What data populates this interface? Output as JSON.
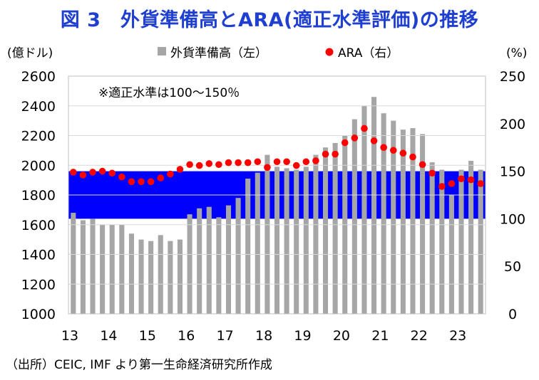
{
  "title": "図 3　外貨準備高とARA(適正水準評価)の推移",
  "source": "（出所）CEIC, IMF より第一生命経済研究所作成",
  "chart_data": {
    "type": "bar",
    "left_axis_unit": "(億ドル)",
    "right_axis_unit": "(%)",
    "ylim_left": [
      1000,
      2600
    ],
    "yticks_left": [
      1000,
      1200,
      1400,
      1600,
      1800,
      2000,
      2200,
      2400,
      2600
    ],
    "ylim_right": [
      0,
      250
    ],
    "yticks_right": [
      0,
      50,
      100,
      150,
      200,
      250
    ],
    "x_tick_labels": [
      "13",
      "14",
      "15",
      "16",
      "17",
      "18",
      "19",
      "20",
      "21",
      "22",
      "23"
    ],
    "legend": {
      "bar_label": "外貨準備高（左）",
      "dot_label": "ARA（右）"
    },
    "annotation": "※適正水準は100〜150％",
    "band_right": [
      100,
      150
    ],
    "colors": {
      "bars": "#a6a6a6",
      "dots": "#ff0000",
      "band": "#0000ff",
      "title": "#1f3fd1"
    },
    "x_start_year": 2013,
    "quarters": [
      "2013Q1",
      "2013Q2",
      "2013Q3",
      "2013Q4",
      "2014Q1",
      "2014Q2",
      "2014Q3",
      "2014Q4",
      "2015Q1",
      "2015Q2",
      "2015Q3",
      "2015Q4",
      "2016Q1",
      "2016Q2",
      "2016Q3",
      "2016Q4",
      "2017Q1",
      "2017Q2",
      "2017Q3",
      "2017Q4",
      "2018Q1",
      "2018Q2",
      "2018Q3",
      "2018Q4",
      "2019Q1",
      "2019Q2",
      "2019Q3",
      "2019Q4",
      "2020Q1",
      "2020Q2",
      "2020Q3",
      "2020Q4",
      "2021Q1",
      "2021Q2",
      "2021Q3",
      "2021Q4",
      "2022Q1",
      "2022Q2",
      "2022Q3",
      "2022Q4",
      "2023Q1",
      "2023Q2",
      "2023Q3"
    ],
    "series": [
      {
        "name": "外貨準備高（左）",
        "type": "bar",
        "values": [
          1680,
          1630,
          1640,
          1600,
          1600,
          1600,
          1540,
          1500,
          1490,
          1530,
          1490,
          1500,
          1670,
          1710,
          1720,
          1650,
          1730,
          1780,
          1910,
          1950,
          2070,
          1990,
          1980,
          1970,
          1990,
          2070,
          2120,
          2150,
          2200,
          2310,
          2400,
          2460,
          2350,
          2300,
          2240,
          2250,
          2210,
          2020,
          1970,
          1800,
          1970,
          2030,
          1970
        ]
      },
      {
        "name": "ARA（右）",
        "type": "scatter",
        "values": [
          149,
          146,
          149,
          150,
          148,
          144,
          139,
          139,
          139,
          143,
          147,
          152,
          157,
          156,
          158,
          157,
          159,
          159,
          159,
          160,
          154,
          160,
          160,
          156,
          160,
          161,
          168,
          168,
          180,
          185,
          195,
          182,
          175,
          172,
          169,
          165,
          157,
          148,
          134,
          137,
          142,
          141,
          137
        ]
      }
    ]
  }
}
